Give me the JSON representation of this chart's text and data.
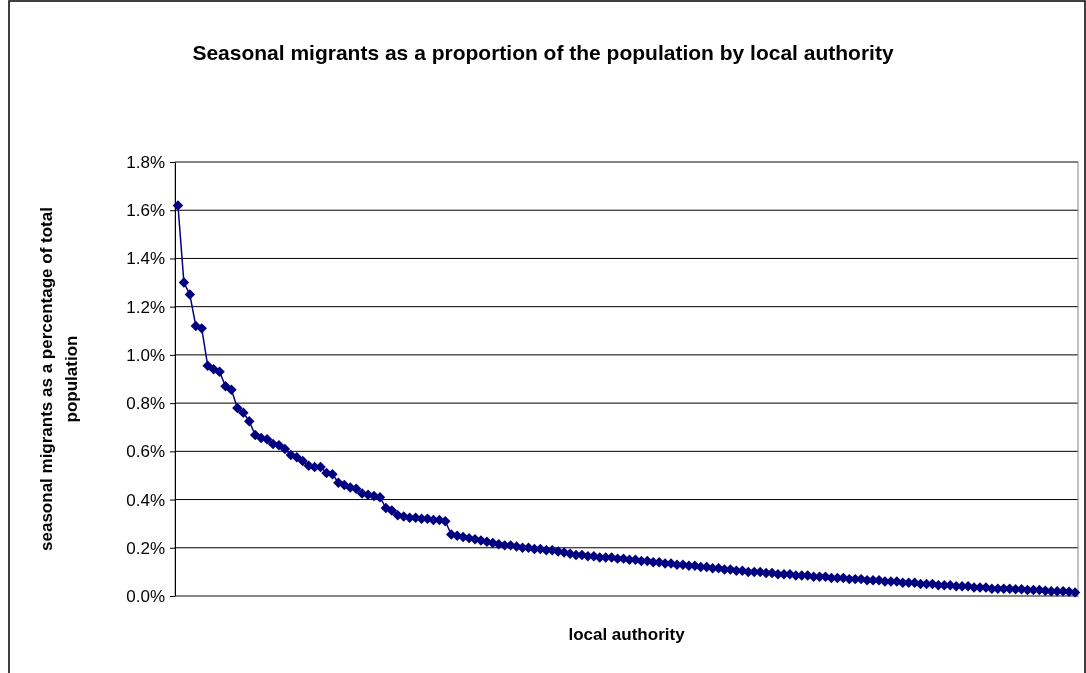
{
  "chart_data": {
    "type": "line",
    "title": "Seasonal migrants as a proportion of the population by local authority",
    "xlabel": "local authority",
    "ylabel": "seasonal migrants as a percentage of total population",
    "categories": [
      null,
      null,
      null,
      null,
      null,
      null,
      null,
      null,
      null,
      null,
      null,
      null,
      null,
      null,
      null,
      null,
      null,
      null,
      null,
      null,
      null,
      null,
      null,
      null,
      null,
      null,
      null,
      null,
      null,
      null,
      null,
      null,
      null,
      null,
      null,
      null,
      null,
      null,
      null,
      null,
      null,
      null,
      null,
      null,
      null,
      null,
      null,
      null,
      null,
      null,
      null,
      null,
      null,
      null,
      null,
      null,
      null,
      null,
      null,
      null,
      null,
      null,
      null,
      null,
      null,
      null,
      null,
      null,
      null,
      null,
      null,
      null,
      null,
      null,
      null,
      null,
      null,
      null,
      null,
      null,
      null,
      null,
      null,
      null,
      null,
      null,
      null,
      null,
      null,
      null,
      null,
      null,
      null,
      null,
      null,
      null,
      null,
      null,
      null,
      null,
      null,
      null,
      null,
      null,
      null,
      null,
      null,
      null,
      null,
      null,
      null,
      null,
      null,
      null,
      null,
      null,
      null,
      null,
      null,
      null,
      null,
      null,
      null,
      null,
      null,
      null,
      null,
      null,
      null,
      null,
      null,
      null,
      null,
      null,
      null,
      null,
      null,
      null,
      null,
      null,
      null,
      null,
      null,
      null,
      null,
      null,
      null,
      null,
      null,
      null,
      null,
      null
    ],
    "series": [
      {
        "color": "#000080",
        "values": [
          1.62,
          1.3,
          1.25,
          1.12,
          1.11,
          0.955,
          0.94,
          0.93,
          0.87,
          0.855,
          0.78,
          0.76,
          0.725,
          0.668,
          0.655,
          0.65,
          0.63,
          0.625,
          0.61,
          0.585,
          0.575,
          0.56,
          0.54,
          0.535,
          0.535,
          0.51,
          0.505,
          0.47,
          0.46,
          0.45,
          0.445,
          0.425,
          0.42,
          0.415,
          0.41,
          0.365,
          0.355,
          0.335,
          0.33,
          0.325,
          0.325,
          0.32,
          0.32,
          0.315,
          0.315,
          0.31,
          0.255,
          0.25,
          0.245,
          0.24,
          0.235,
          0.23,
          0.225,
          0.22,
          0.215,
          0.21,
          0.21,
          0.205,
          0.2,
          0.2,
          0.195,
          0.195,
          0.19,
          0.19,
          0.185,
          0.18,
          0.175,
          0.17,
          0.17,
          0.165,
          0.165,
          0.16,
          0.16,
          0.16,
          0.155,
          0.155,
          0.15,
          0.15,
          0.145,
          0.145,
          0.14,
          0.14,
          0.135,
          0.135,
          0.13,
          0.13,
          0.125,
          0.125,
          0.12,
          0.12,
          0.115,
          0.115,
          0.11,
          0.11,
          0.105,
          0.105,
          0.1,
          0.1,
          0.1,
          0.095,
          0.095,
          0.09,
          0.09,
          0.09,
          0.085,
          0.085,
          0.085,
          0.08,
          0.08,
          0.08,
          0.075,
          0.075,
          0.075,
          0.07,
          0.07,
          0.07,
          0.065,
          0.065,
          0.065,
          0.06,
          0.06,
          0.06,
          0.055,
          0.055,
          0.055,
          0.05,
          0.05,
          0.05,
          0.045,
          0.045,
          0.045,
          0.04,
          0.04,
          0.04,
          0.035,
          0.035,
          0.035,
          0.03,
          0.03,
          0.03,
          0.03,
          0.028,
          0.028,
          0.025,
          0.025,
          0.025,
          0.022,
          0.02,
          0.02,
          0.02,
          0.018,
          0.015
        ]
      }
    ],
    "ylim": [
      0,
      1.8
    ],
    "yticks": [
      {
        "value": 0,
        "label": "0.0%"
      },
      {
        "value": 0.2,
        "label": "0.2%"
      },
      {
        "value": 0.4,
        "label": "0.4%"
      },
      {
        "value": 0.6,
        "label": "0.6%"
      },
      {
        "value": 0.8,
        "label": "0.8%"
      },
      {
        "value": 1.0,
        "label": "1.0%"
      },
      {
        "value": 1.2,
        "label": "1.2%"
      },
      {
        "value": 1.4,
        "label": "1.4%"
      },
      {
        "value": 1.6,
        "label": "1.6%"
      },
      {
        "value": 1.8,
        "label": "1.8%"
      }
    ],
    "grid": "y",
    "marker": "diamond",
    "line_style": "solid"
  }
}
